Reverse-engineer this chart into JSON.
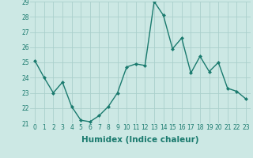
{
  "x": [
    0,
    1,
    2,
    3,
    4,
    5,
    6,
    7,
    8,
    9,
    10,
    11,
    12,
    13,
    14,
    15,
    16,
    17,
    18,
    19,
    20,
    21,
    22,
    23
  ],
  "y": [
    25.1,
    24.0,
    23.0,
    23.7,
    22.1,
    21.2,
    21.1,
    21.5,
    22.1,
    23.0,
    24.7,
    24.9,
    24.8,
    29.0,
    28.1,
    25.9,
    26.6,
    24.3,
    25.4,
    24.4,
    25.0,
    23.3,
    23.1,
    22.6
  ],
  "line_color": "#1a7a6e",
  "marker": "D",
  "markersize": 2.0,
  "linewidth": 1.0,
  "bg_color": "#cce8e4",
  "grid_color": "#aacfcc",
  "xlabel": "Humidex (Indice chaleur)",
  "xlim": [
    -0.5,
    23.5
  ],
  "ylim": [
    21,
    29
  ],
  "yticks": [
    21,
    22,
    23,
    24,
    25,
    26,
    27,
    28,
    29
  ],
  "xticks": [
    0,
    1,
    2,
    3,
    4,
    5,
    6,
    7,
    8,
    9,
    10,
    11,
    12,
    13,
    14,
    15,
    16,
    17,
    18,
    19,
    20,
    21,
    22,
    23
  ],
  "tick_fontsize": 5.5,
  "xlabel_fontsize": 7.5
}
